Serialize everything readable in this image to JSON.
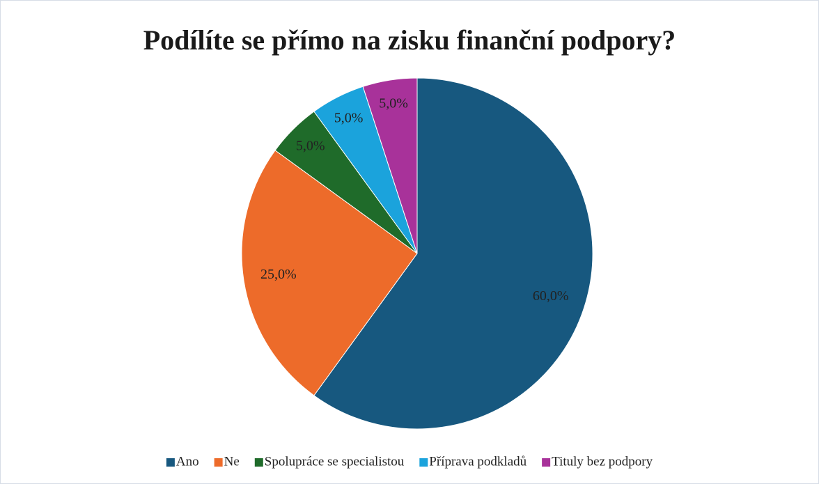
{
  "chart_data": {
    "type": "pie",
    "title": "Podílíte se přímo na zisku finanční podpory?",
    "categories": [
      "Ano",
      "Ne",
      "Spolupráce se specialistou",
      "Příprava podkladů",
      "Tituly bez podpory"
    ],
    "values": [
      60,
      25,
      5,
      5,
      5
    ],
    "value_labels": [
      "60,0%",
      "25,0%",
      "5,0%",
      "5,0%",
      "5,0%"
    ],
    "colors": [
      "#17587f",
      "#ed6b2a",
      "#1f6b2a",
      "#1ba3dc",
      "#a8329a"
    ],
    "legend": "bottom"
  }
}
